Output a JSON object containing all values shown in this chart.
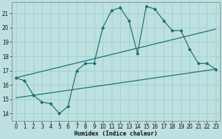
{
  "xlabel": "Humidex (Indice chaleur)",
  "xlim": [
    -0.5,
    23.5
  ],
  "ylim": [
    13.5,
    21.8
  ],
  "yticks": [
    14,
    15,
    16,
    17,
    18,
    19,
    20,
    21
  ],
  "xticks": [
    0,
    1,
    2,
    3,
    4,
    5,
    6,
    7,
    8,
    9,
    10,
    11,
    12,
    13,
    14,
    15,
    16,
    17,
    18,
    19,
    20,
    21,
    22,
    23
  ],
  "bg_color": "#bde0e0",
  "line_color": "#1a7070",
  "grid_color": "#9ecece",
  "main_x": [
    0,
    1,
    2,
    3,
    4,
    5,
    6,
    7,
    8,
    9,
    10,
    11,
    12,
    13,
    14,
    15,
    16,
    17,
    18,
    19,
    20,
    21,
    22,
    23
  ],
  "main_y": [
    16.5,
    16.3,
    15.3,
    14.8,
    14.7,
    14.0,
    14.5,
    17.0,
    17.5,
    17.5,
    20.0,
    21.2,
    21.4,
    20.5,
    18.2,
    21.5,
    21.3,
    20.5,
    19.8,
    19.8,
    18.5,
    17.5,
    17.5,
    17.1
  ],
  "upper_line_x": [
    0,
    23
  ],
  "upper_line_y": [
    16.5,
    19.9
  ],
  "lower_line_x": [
    0,
    23
  ],
  "lower_line_y": [
    15.1,
    17.1
  ]
}
